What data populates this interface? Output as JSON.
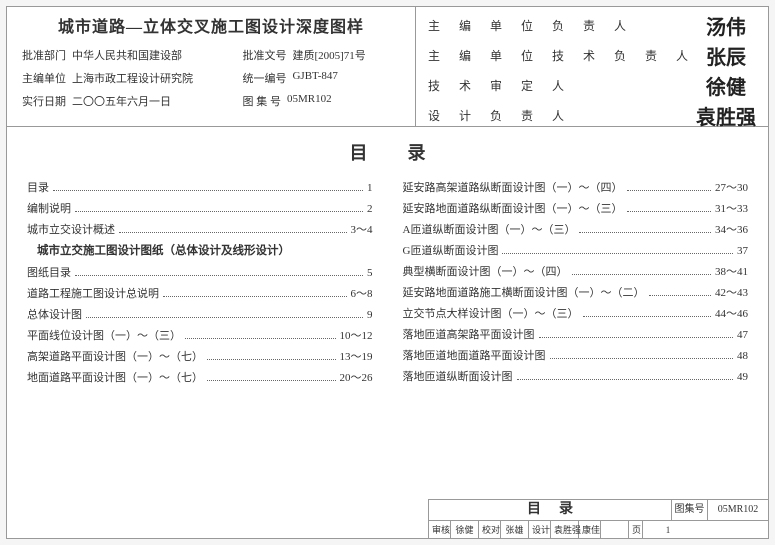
{
  "header": {
    "title": "城市道路—立体交叉施工图设计深度图样",
    "rows": [
      {
        "l1": "批准部门",
        "v1": "中华人民共和国建设部",
        "l2": "批准文号",
        "v2": "建质[2005]71号"
      },
      {
        "l1": "主编单位",
        "v1": "上海市政工程设计研究院",
        "l2": "统一编号",
        "v2": "GJBT-847"
      },
      {
        "l1": "实行日期",
        "v1": "二〇〇五年六月一日",
        "l2": "图 集 号",
        "v2": "05MR102"
      }
    ]
  },
  "signatures": [
    {
      "label": "主 编 单 位 负 责 人",
      "sig": "汤伟"
    },
    {
      "label": "主 编 单 位 技 术 负 责 人",
      "sig": "张辰"
    },
    {
      "label": "技  术  审  定  人",
      "sig": "徐健"
    },
    {
      "label": "设  计  负  责  人",
      "sig": "袁胜强"
    }
  ],
  "toc": {
    "title": "目录",
    "section_head": "城市立交施工图设计图纸（总体设计及线形设计）",
    "left": [
      {
        "t": "目录",
        "p": "1"
      },
      {
        "t": "编制说明",
        "p": "2"
      },
      {
        "t": "城市立交设计概述",
        "p": "3～4"
      },
      {
        "__section__": true
      },
      {
        "t": "图纸目录",
        "p": "5"
      },
      {
        "t": "道路工程施工图设计总说明",
        "p": "6～8"
      },
      {
        "t": "总体设计图",
        "p": "9"
      },
      {
        "t": "平面线位设计图（一）～（三）",
        "p": "10～12"
      },
      {
        "t": "高架道路平面设计图（一）～（七）",
        "p": "13～19"
      },
      {
        "t": "地面道路平面设计图（一）～（七）",
        "p": "20～26"
      }
    ],
    "right": [
      {
        "t": "延安路高架道路纵断面设计图（一）～（四）",
        "p": "27～30"
      },
      {
        "t": "延安路地面道路纵断面设计图（一）～（三）",
        "p": "31～33"
      },
      {
        "t": "A匝道纵断面设计图（一）～（三）",
        "p": "34～36"
      },
      {
        "t": "G匝道纵断面设计图",
        "p": "37"
      },
      {
        "t": "典型横断面设计图（一）～（四）",
        "p": "38～41"
      },
      {
        "t": "延安路地面道路施工横断面设计图（一）～（二）",
        "p": "42～43"
      },
      {
        "t": "立交节点大样设计图（一）～（三）",
        "p": "44～46"
      },
      {
        "t": "落地匝道高架路平面设计图",
        "p": "47"
      },
      {
        "t": "落地匝道地面道路平面设计图",
        "p": "48"
      },
      {
        "t": "落地匝道纵断面设计图",
        "p": "49"
      }
    ]
  },
  "footer": {
    "title": "目录",
    "code_label": "图集号",
    "code_value": "05MR102",
    "cells": [
      {
        "lbl": "审核",
        "sig": "徐健"
      },
      {
        "lbl": "校对",
        "sig": "张雄"
      },
      {
        "lbl": "设计",
        "sig": "袁胜强"
      },
      {
        "lbl": "康佳",
        "sig": ""
      }
    ],
    "page_label": "页",
    "page": "1"
  }
}
